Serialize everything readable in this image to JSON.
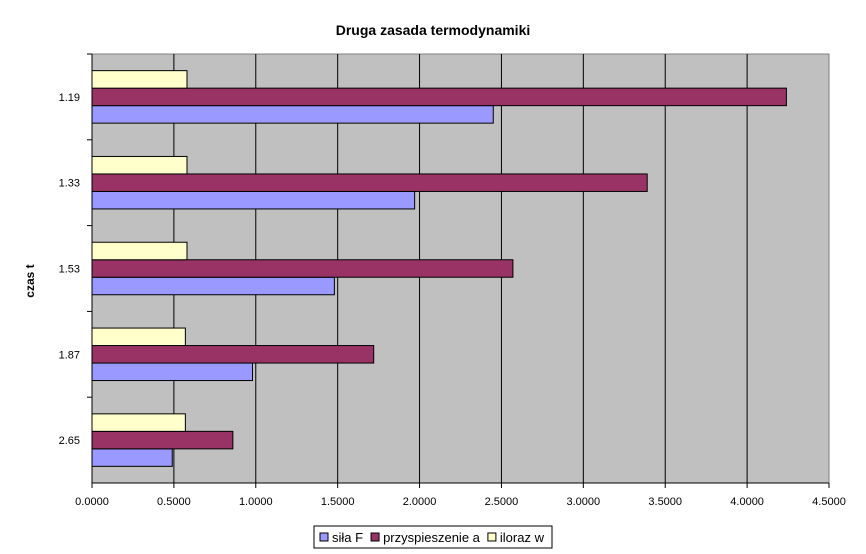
{
  "chart_data": {
    "type": "bar",
    "orientation": "horizontal",
    "title": "Druga zasada termodynamiki",
    "ylabel": "czas t",
    "xlabel": "",
    "categories": [
      "2.65",
      "1.87",
      "1.53",
      "1.33",
      "1.19"
    ],
    "series": [
      {
        "name": "siła F",
        "color": "#9999ff",
        "values": [
          0.49,
          0.98,
          1.48,
          1.97,
          2.45
        ]
      },
      {
        "name": "przyspieszenie a",
        "color": "#993366",
        "values": [
          0.86,
          1.72,
          2.57,
          3.39,
          4.24
        ]
      },
      {
        "name": "iloraz w",
        "color": "#ffffcc",
        "values": [
          0.57,
          0.57,
          0.58,
          0.58,
          0.58
        ]
      }
    ],
    "xlim": [
      0,
      4.5
    ],
    "xticks": [
      "0.0000",
      "0.5000",
      "1.0000",
      "1.5000",
      "2.0000",
      "2.5000",
      "3.0000",
      "3.5000",
      "4.0000",
      "4.5000"
    ],
    "grid": true,
    "plot_background": "#c0c0c0",
    "legend_position": "bottom"
  }
}
